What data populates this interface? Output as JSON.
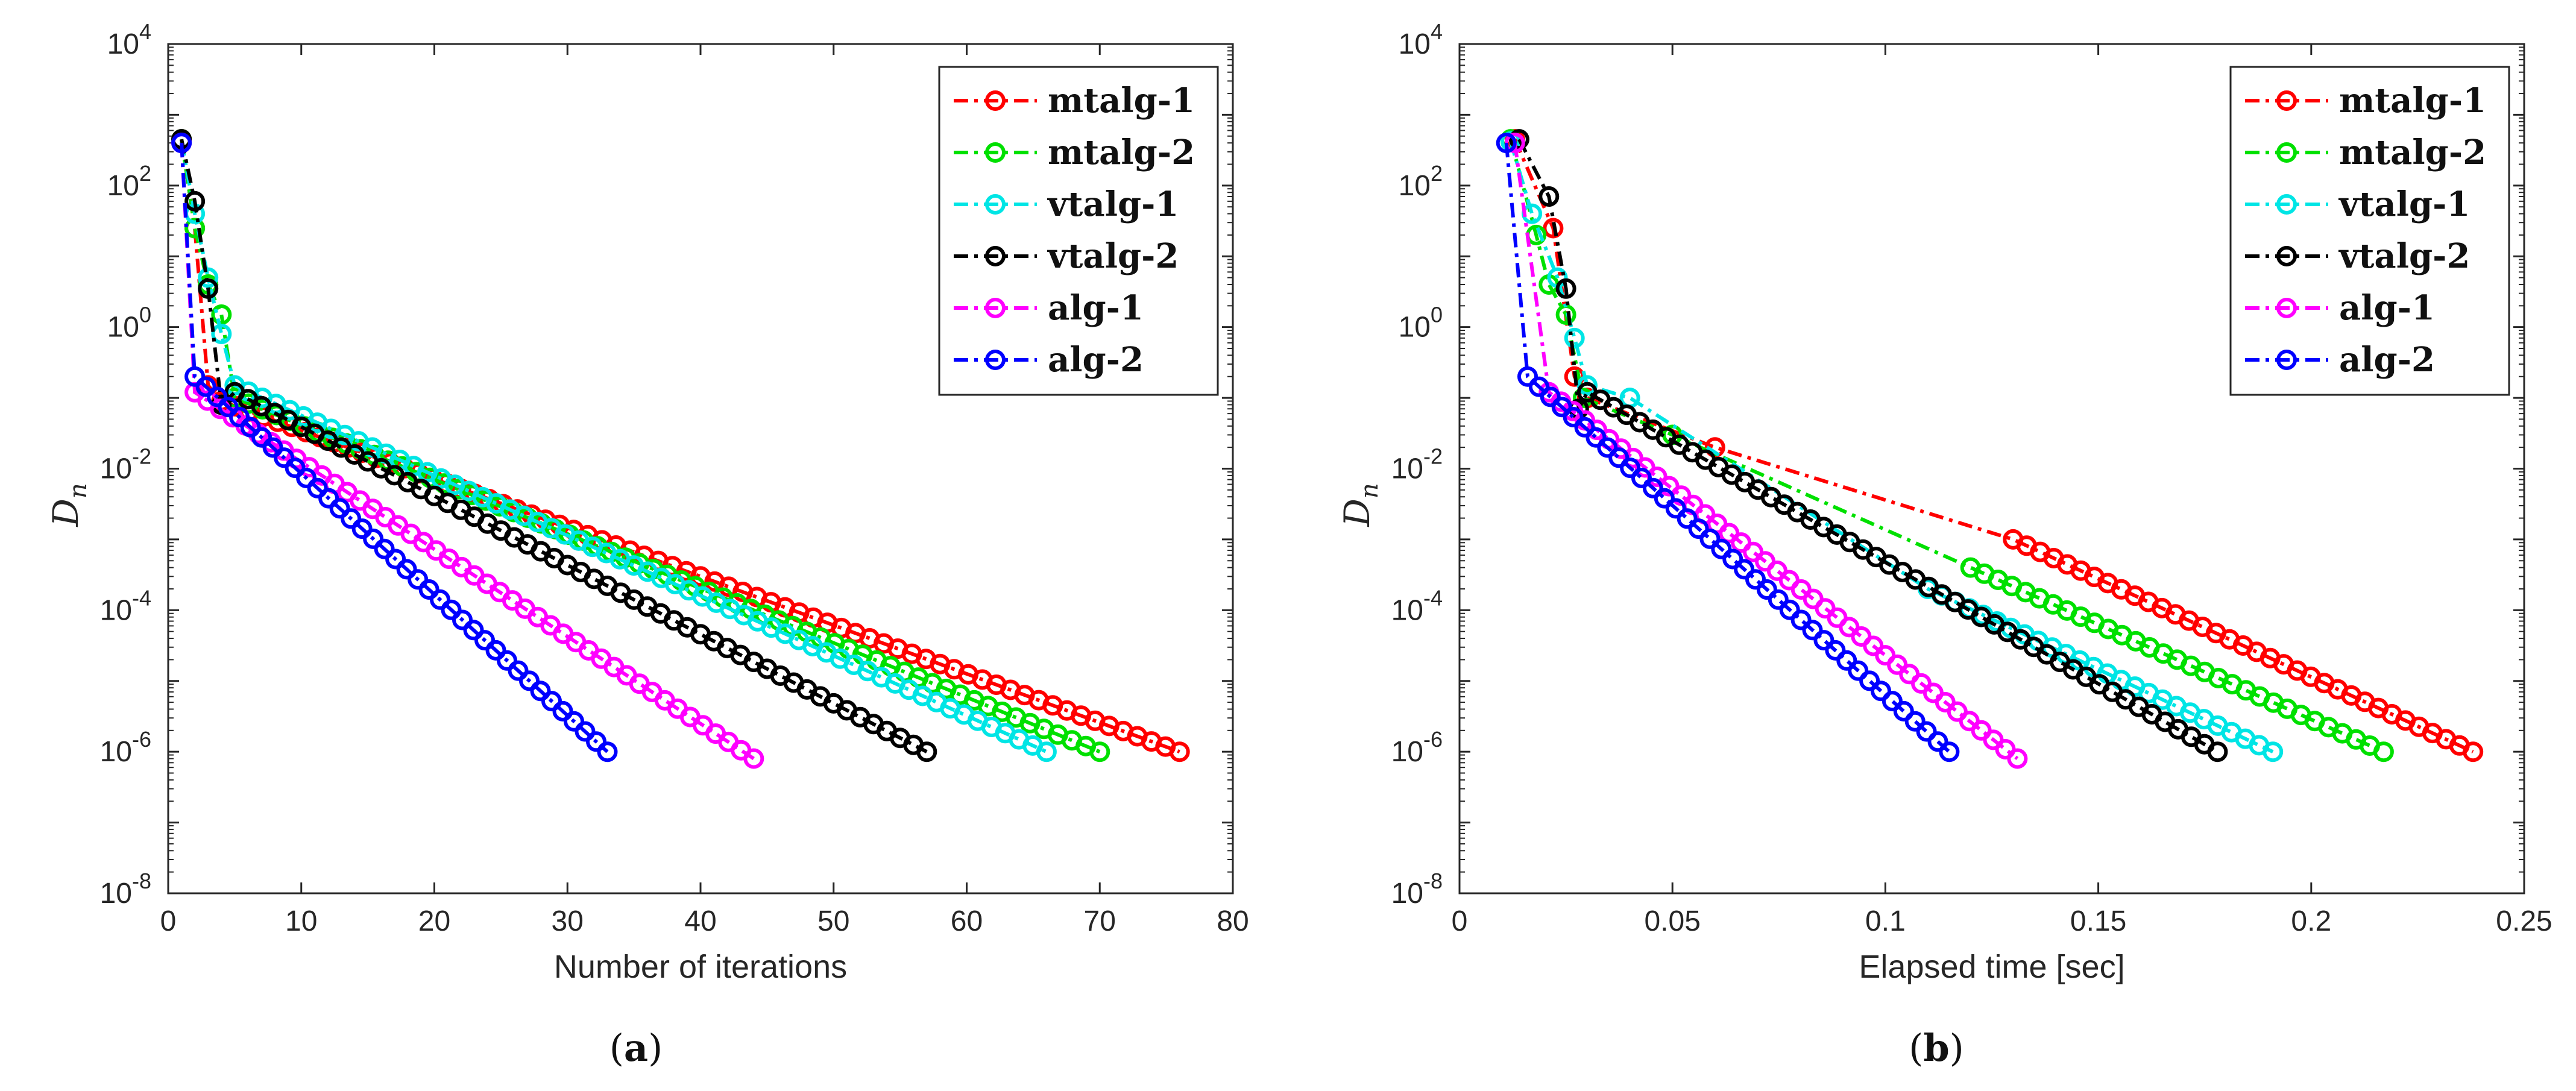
{
  "chart_data": [
    {
      "type": "line",
      "panel_caption": {
        "open": "(",
        "letter": "a",
        "close": ")"
      },
      "xlabel": "Number of iterations",
      "ylabel": {
        "base": "D",
        "sub": "n"
      },
      "xlim": [
        0,
        80
      ],
      "ylim_exponent": [
        -8,
        4
      ],
      "yscale": "log",
      "xticks": [
        "0",
        "10",
        "20",
        "30",
        "40",
        "50",
        "60",
        "70",
        "80"
      ],
      "yticks": [
        {
          "base": "10",
          "exp": "-8"
        },
        {
          "base": "10",
          "exp": "-6"
        },
        {
          "base": "10",
          "exp": "-4"
        },
        {
          "base": "10",
          "exp": "-2"
        },
        {
          "base": "10",
          "exp": "0"
        },
        {
          "base": "10",
          "exp": "2"
        },
        {
          "base": "10",
          "exp": "4"
        }
      ],
      "legend_location": "top-right",
      "series": [
        {
          "name": "mtalg-1",
          "color": "#ff0000",
          "marker": "circle",
          "line": "dash-dot",
          "points": [
            [
              1,
              450
            ],
            [
              2,
              25
            ],
            [
              3,
              0.15
            ],
            [
              4,
              0.09
            ],
            [
              76,
              1e-06
            ]
          ]
        },
        {
          "name": "mtalg-2",
          "color": "#00e000",
          "marker": "circle",
          "line": "dash-dot",
          "points": [
            [
              1,
              450
            ],
            [
              2,
              25
            ],
            [
              3,
              4
            ],
            [
              4,
              1.5
            ],
            [
              5,
              0.1
            ],
            [
              70,
              1e-06
            ]
          ]
        },
        {
          "name": "vtalg-1",
          "color": "#00e5e5",
          "marker": "circle",
          "line": "dash-dot",
          "points": [
            [
              1,
              420
            ],
            [
              2,
              40
            ],
            [
              3,
              5
            ],
            [
              4,
              0.8
            ],
            [
              5,
              0.15
            ],
            [
              66,
              1e-06
            ]
          ]
        },
        {
          "name": "vtalg-2",
          "color": "#000000",
          "marker": "circle",
          "line": "dash-dot",
          "points": [
            [
              1,
              450
            ],
            [
              2,
              60
            ],
            [
              3,
              3.5
            ],
            [
              4,
              0.08
            ],
            [
              5,
              0.12
            ],
            [
              57,
              1e-06
            ]
          ]
        },
        {
          "name": "alg-1",
          "color": "#ff00ff",
          "marker": "circle",
          "line": "dash-dot",
          "points": [
            [
              1,
              400
            ],
            [
              2,
              0.12
            ],
            [
              44,
              8e-07
            ]
          ]
        },
        {
          "name": "alg-2",
          "color": "#0000ff",
          "marker": "circle",
          "line": "dash-dot",
          "points": [
            [
              1,
              400
            ],
            [
              2,
              0.2
            ],
            [
              33,
              1e-06
            ]
          ]
        }
      ]
    },
    {
      "type": "line",
      "panel_caption": {
        "open": "(",
        "letter": "b",
        "close": ")"
      },
      "xlabel": "Elapsed time [sec]",
      "ylabel": {
        "base": "D",
        "sub": "n"
      },
      "xlim": [
        0,
        0.25
      ],
      "ylim_exponent": [
        -8,
        4
      ],
      "yscale": "log",
      "xticks": [
        "0",
        "0.05",
        "0.1",
        "0.15",
        "0.2",
        "0.25"
      ],
      "yticks": [
        {
          "base": "10",
          "exp": "-8"
        },
        {
          "base": "10",
          "exp": "-6"
        },
        {
          "base": "10",
          "exp": "-4"
        },
        {
          "base": "10",
          "exp": "-2"
        },
        {
          "base": "10",
          "exp": "0"
        },
        {
          "base": "10",
          "exp": "2"
        },
        {
          "base": "10",
          "exp": "4"
        }
      ],
      "legend_location": "top-right",
      "series": [
        {
          "name": "mtalg-1",
          "color": "#ff0000",
          "marker": "circle",
          "line": "dash-dot",
          "points": [
            [
              0.013,
              450
            ],
            [
              0.022,
              25
            ],
            [
              0.027,
              0.2
            ],
            [
              0.03,
              0.1
            ],
            [
              0.06,
              0.02
            ],
            [
              0.13,
              0.001
            ],
            [
              0.238,
              1e-06
            ]
          ]
        },
        {
          "name": "mtalg-2",
          "color": "#00e000",
          "marker": "circle",
          "line": "dash-dot",
          "points": [
            [
              0.012,
              450
            ],
            [
              0.018,
              20
            ],
            [
              0.021,
              4
            ],
            [
              0.025,
              1.5
            ],
            [
              0.029,
              0.1
            ],
            [
              0.05,
              0.03
            ],
            [
              0.12,
              0.0004
            ],
            [
              0.217,
              1e-06
            ]
          ]
        },
        {
          "name": "vtalg-1",
          "color": "#00e5e5",
          "marker": "circle",
          "line": "dash-dot",
          "points": [
            [
              0.012,
              420
            ],
            [
              0.017,
              40
            ],
            [
              0.023,
              5
            ],
            [
              0.027,
              0.7
            ],
            [
              0.03,
              0.15
            ],
            [
              0.04,
              0.1
            ],
            [
              0.11,
              0.0002
            ],
            [
              0.191,
              1e-06
            ]
          ]
        },
        {
          "name": "vtalg-2",
          "color": "#000000",
          "marker": "circle",
          "line": "dash-dot",
          "points": [
            [
              0.014,
              450
            ],
            [
              0.021,
              70
            ],
            [
              0.025,
              3.5
            ],
            [
              0.028,
              0.07
            ],
            [
              0.03,
              0.12
            ],
            [
              0.178,
              1e-06
            ]
          ]
        },
        {
          "name": "alg-1",
          "color": "#ff00ff",
          "marker": "circle",
          "line": "dash-dot",
          "points": [
            [
              0.013,
              400
            ],
            [
              0.021,
              0.12
            ],
            [
              0.131,
              8e-07
            ]
          ]
        },
        {
          "name": "alg-2",
          "color": "#0000ff",
          "marker": "circle",
          "line": "dash-dot",
          "points": [
            [
              0.011,
              400
            ],
            [
              0.016,
              0.2
            ],
            [
              0.115,
              1e-06
            ]
          ]
        }
      ]
    }
  ]
}
